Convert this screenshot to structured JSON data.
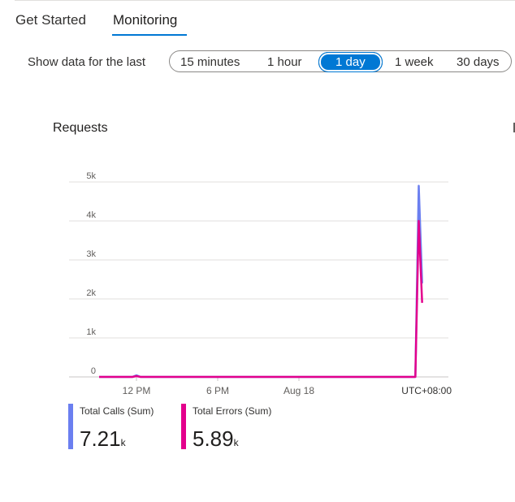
{
  "tabs": [
    {
      "label": "Get Started",
      "active": false
    },
    {
      "label": "Monitoring",
      "active": true
    }
  ],
  "time_range": {
    "label": "Show data for the last",
    "options": [
      "15 minutes",
      "1 hour",
      "1 day",
      "1 week",
      "30 days"
    ],
    "selected": "1 day"
  },
  "chart_data": {
    "type": "line",
    "title": "Requests",
    "x_unit": "hours relative to 12 PM",
    "xticks": [
      {
        "h": 0,
        "label": "12 PM"
      },
      {
        "h": 6,
        "label": "6 PM"
      },
      {
        "h": 12,
        "label": "Aug 18"
      }
    ],
    "timezone_label": "UTC+08:00",
    "yticks": [
      {
        "v": 0,
        "label": "0"
      },
      {
        "v": 1000,
        "label": "1k"
      },
      {
        "v": 2000,
        "label": "2k"
      },
      {
        "v": 3000,
        "label": "3k"
      },
      {
        "v": 4000,
        "label": "4k"
      },
      {
        "v": 5000,
        "label": "5k"
      }
    ],
    "xlim": [
      -5,
      22.9
    ],
    "ylim": [
      0,
      5000
    ],
    "grid": true,
    "series": [
      {
        "name": "Total Calls (Sum)",
        "color": "#6b7ff0",
        "total": "7.21",
        "unit": "k",
        "points": [
          [
            -2.76,
            0
          ],
          [
            -0.3,
            0
          ],
          [
            0,
            40
          ],
          [
            0.3,
            0
          ],
          [
            20.6,
            0
          ],
          [
            20.85,
            4900
          ],
          [
            21.1,
            2400
          ]
        ]
      },
      {
        "name": "Total Errors (Sum)",
        "color": "#e3008c",
        "total": "5.89",
        "unit": "k",
        "points": [
          [
            -2.76,
            0
          ],
          [
            -0.3,
            0
          ],
          [
            0,
            20
          ],
          [
            0.3,
            0
          ],
          [
            20.6,
            0
          ],
          [
            20.85,
            4000
          ],
          [
            21.1,
            1900
          ]
        ]
      }
    ]
  }
}
